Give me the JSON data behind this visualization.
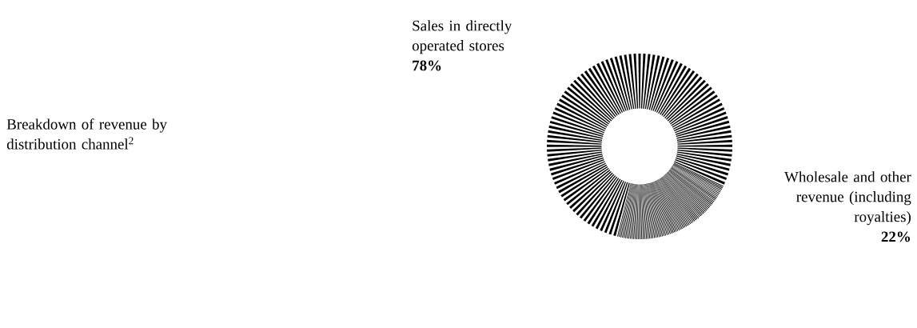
{
  "chart_data": {
    "type": "donut",
    "title": "Breakdown of revenue by distribution channel$^{2}$",
    "categories": [
      "Sales in directly operated stores",
      "Wholesale and other revenue (including royalties)"
    ],
    "values": [
      78,
      22
    ],
    "value_labels": [
      "78%",
      "22%"
    ],
    "colors": [
      "#000000",
      "#000000"
    ]
  }
}
